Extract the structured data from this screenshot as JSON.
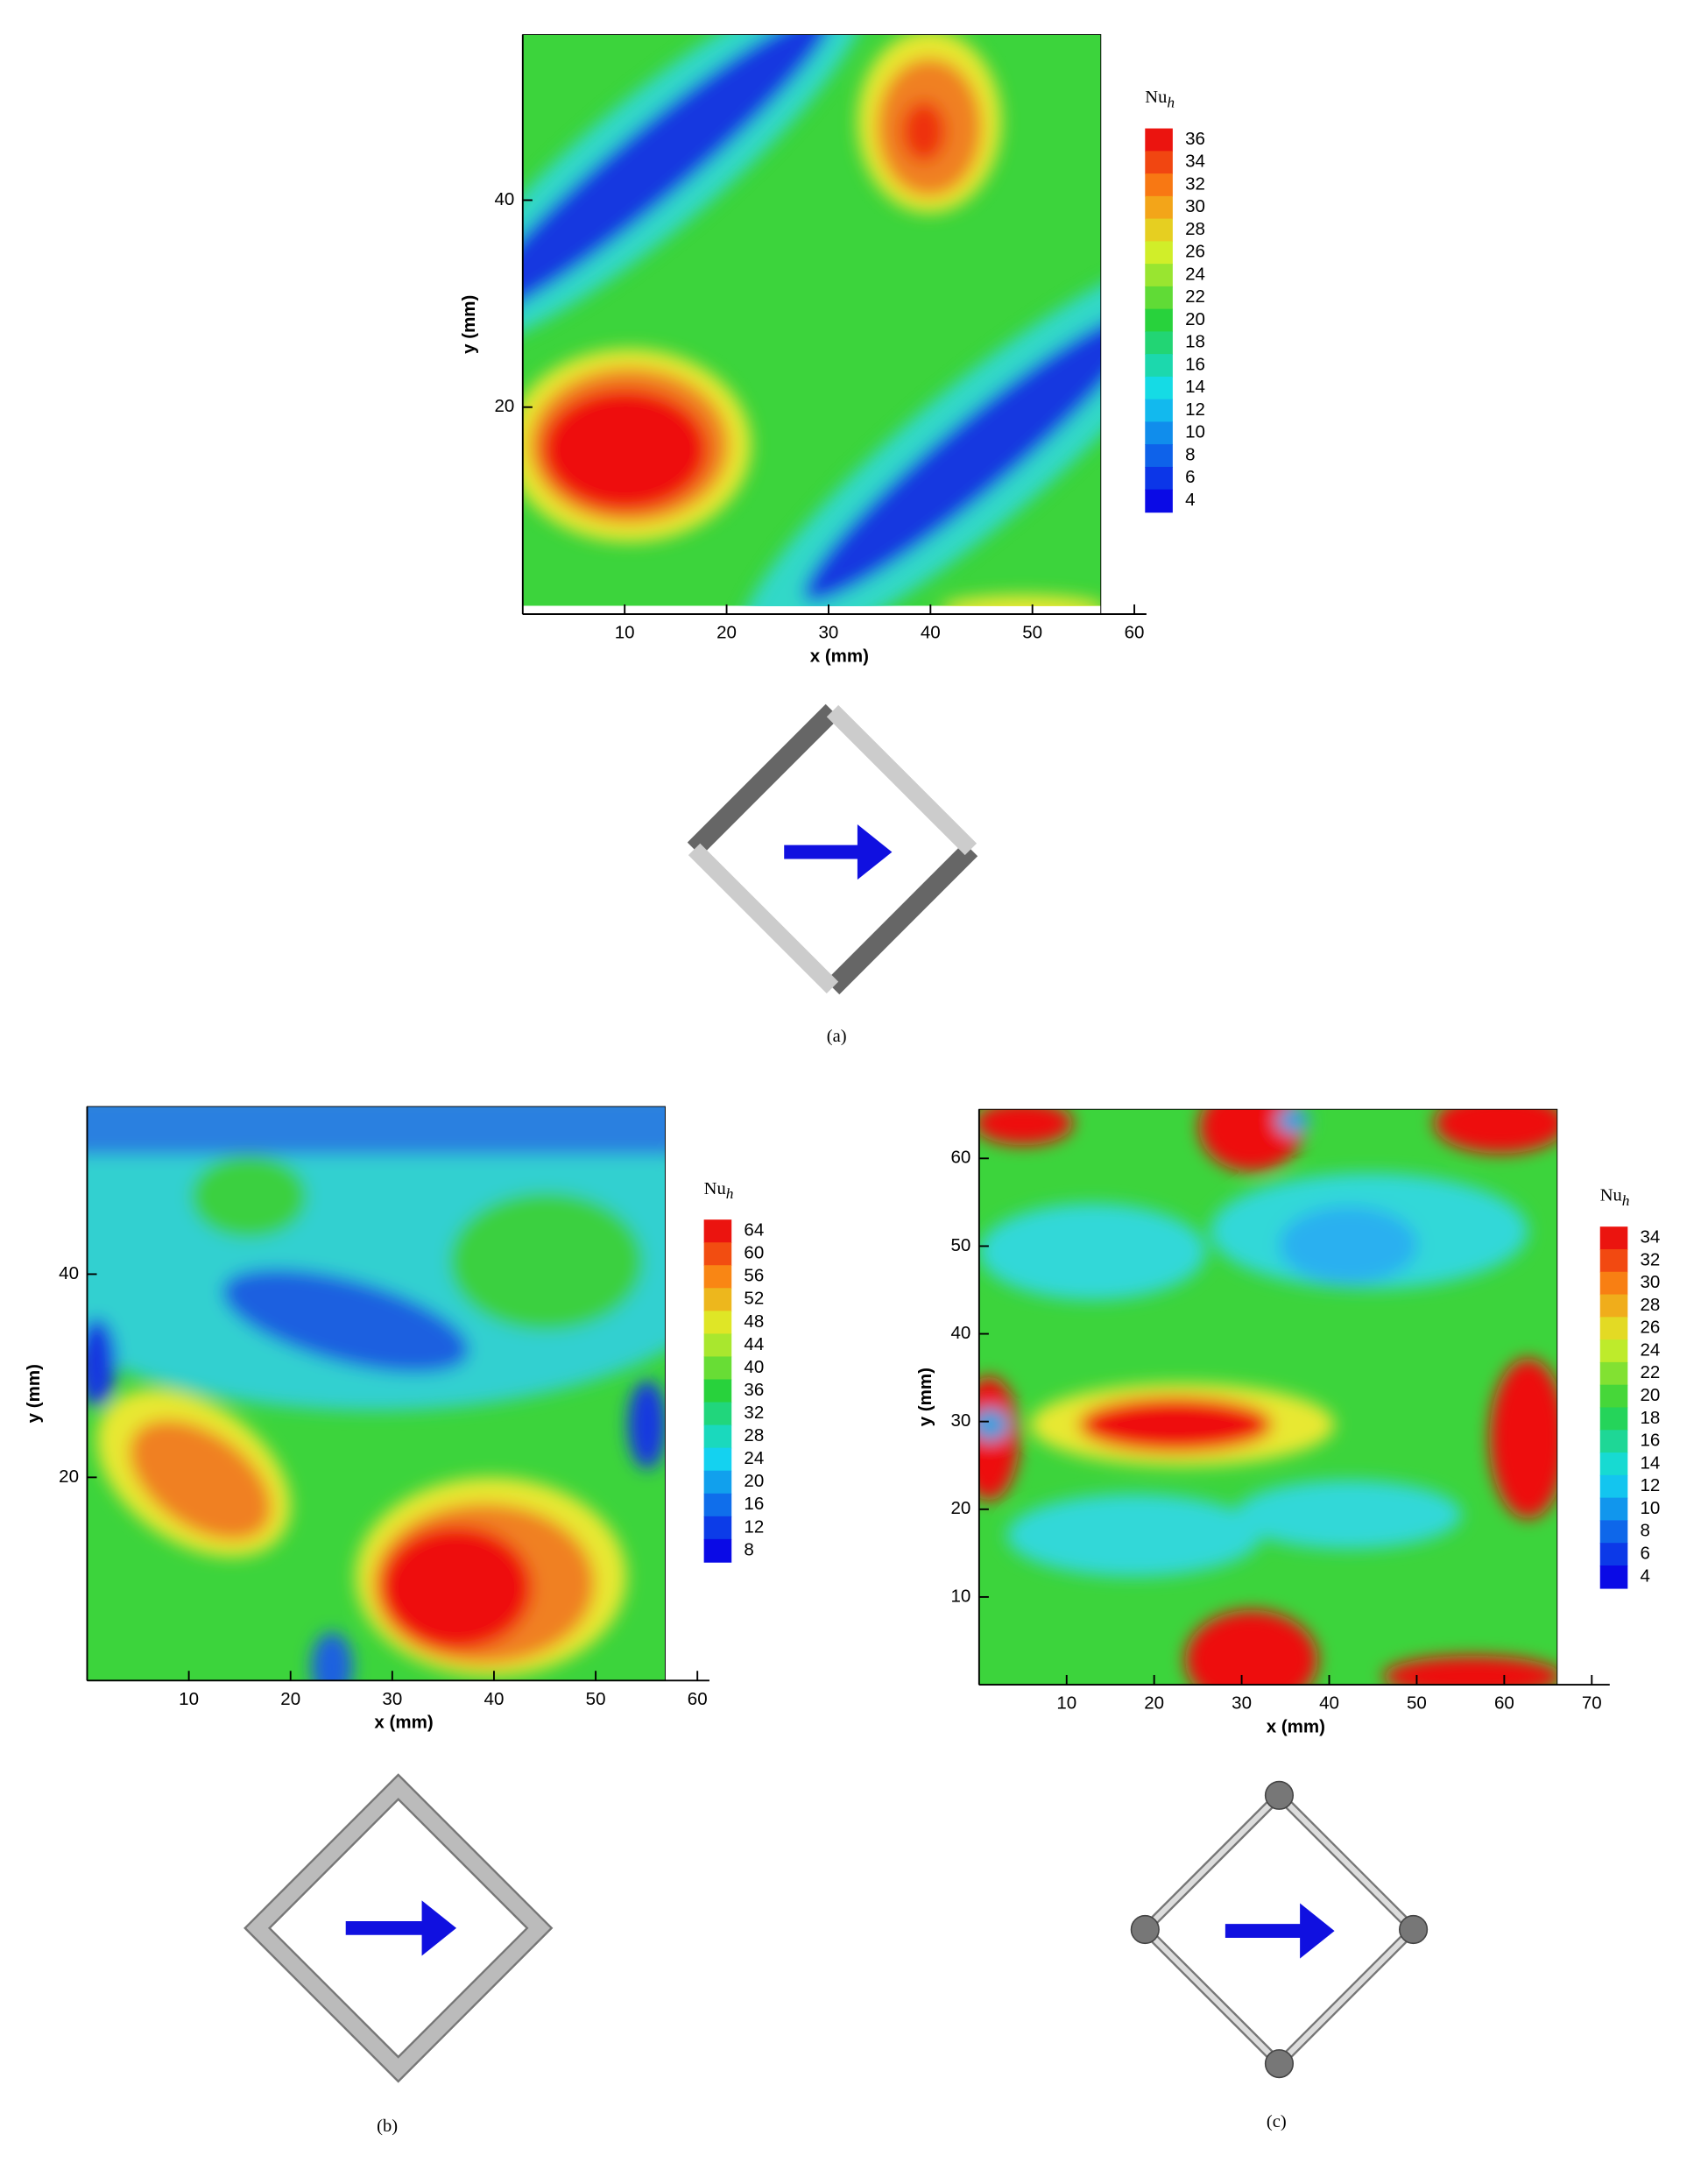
{
  "chart_data": [
    {
      "type": "contour",
      "panel_label": "(a)",
      "xlabel": "x (mm)",
      "ylabel": "y (mm)",
      "xlim": [
        0,
        62
      ],
      "ylim": [
        0,
        56
      ],
      "xticks": [
        10,
        20,
        30,
        40,
        50,
        60
      ],
      "yticks": [
        20,
        40
      ],
      "colorbar": {
        "title": "Nu",
        "title_subscript": "h",
        "levels": [
          36,
          34,
          32,
          30,
          28,
          26,
          24,
          22,
          20,
          18,
          16,
          14,
          12,
          10,
          8,
          6,
          4
        ]
      }
    },
    {
      "type": "contour",
      "panel_label": "(b)",
      "xlabel": "x (mm)",
      "ylabel": "y (mm)",
      "xlim": [
        0,
        62
      ],
      "ylim": [
        0,
        56.5
      ],
      "xticks": [
        10,
        20,
        30,
        40,
        50,
        60
      ],
      "yticks": [
        20,
        40
      ],
      "colorbar": {
        "title": "Nu",
        "title_subscript": "h",
        "levels": [
          64,
          60,
          56,
          52,
          48,
          44,
          40,
          36,
          32,
          28,
          24,
          20,
          16,
          12,
          8
        ]
      }
    },
    {
      "type": "contour",
      "panel_label": "(c)",
      "xlabel": "x (mm)",
      "ylabel": "y (mm)",
      "xlim": [
        0,
        73
      ],
      "ylim": [
        0,
        65.6
      ],
      "xticks": [
        10,
        20,
        30,
        40,
        50,
        60,
        70
      ],
      "yticks": [
        10,
        20,
        30,
        40,
        50,
        60
      ],
      "colorbar": {
        "title": "Nu",
        "title_subscript": "h",
        "levels": [
          34,
          32,
          30,
          28,
          26,
          24,
          22,
          20,
          18,
          16,
          14,
          12,
          10,
          8,
          6,
          4
        ]
      }
    }
  ]
}
